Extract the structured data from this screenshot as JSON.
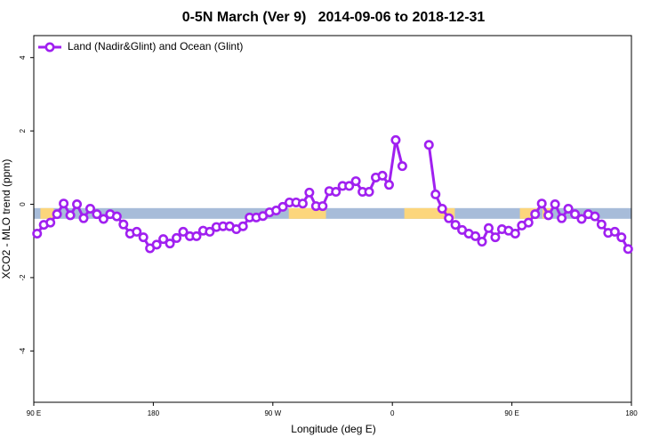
{
  "chart_data": {
    "type": "line",
    "title": "0-5N March (Ver 9)   2014-09-06 to 2018-12-31",
    "xlabel": "Longitude (deg E)",
    "ylabel": "XCO2 - MLO trend (ppm)",
    "xlim": [
      90,
      540
    ],
    "ylim": [
      -5.4,
      4.6
    ],
    "xticks": [
      {
        "value": 90,
        "label": "90 E"
      },
      180,
      {
        "value": 270,
        "label": "90 W"
      },
      {
        "value": 360,
        "label": "0"
      },
      {
        "value": 450,
        "label": "90 E"
      },
      {
        "value": 540,
        "label": "180"
      }
    ],
    "yticks": [
      -4,
      -2,
      0,
      2,
      4
    ],
    "legend_position": "top-left",
    "surface_level": -0.25,
    "surface_bands": [
      {
        "name": "ocean",
        "color": "#a7bcd9",
        "from": 90,
        "to": 540
      },
      {
        "name": "land",
        "color": "#fcd67c",
        "from": 95,
        "to": 105
      },
      {
        "name": "land",
        "color": "#fcd67c",
        "from": 282,
        "to": 310
      },
      {
        "name": "land",
        "color": "#fcd67c",
        "from": 369,
        "to": 407
      },
      {
        "name": "land",
        "color": "#fcd67c",
        "from": 456,
        "to": 470
      },
      {
        "name": "land",
        "color": "#fcd67c",
        "from": 473,
        "to": 480
      }
    ],
    "x": [
      92.5,
      97.5,
      102.5,
      107.5,
      112.5,
      117.5,
      122.5,
      127.5,
      132.5,
      137.5,
      142.5,
      147.5,
      152.5,
      157.5,
      162.5,
      167.5,
      172.5,
      177.5,
      182.5,
      187.5,
      192.5,
      197.5,
      202.5,
      207.5,
      212.5,
      217.5,
      222.5,
      227.5,
      232.5,
      237.5,
      242.5,
      247.5,
      252.5,
      257.5,
      262.5,
      267.5,
      272.5,
      277.5,
      282.5,
      287.5,
      292.5,
      297.5,
      302.5,
      307.5,
      312.5,
      317.5,
      322.5,
      327.5,
      332.5,
      337.5,
      342.5,
      347.5,
      352.5,
      357.5,
      362.5,
      367.5,
      372.5,
      377.5,
      382.5,
      387.5,
      392.5,
      397.5,
      402.5,
      407.5,
      412.5,
      417.5,
      422.5,
      427.5,
      432.5,
      437.5,
      442.5,
      447.5,
      452.5,
      457.5,
      462.5,
      467.5,
      472.5,
      477.5,
      482.5,
      487.5,
      492.5,
      497.5,
      502.5,
      507.5,
      512.5,
      517.5,
      522.5,
      527.5,
      532.5,
      537.5
    ],
    "series": [
      {
        "name": "Land (Nadir&Glint) and Ocean (Glint)",
        "color": "#a020f0",
        "values": [
          -0.8,
          -0.56,
          -0.5,
          -0.27,
          0.02,
          -0.3,
          0,
          -0.38,
          -0.12,
          -0.27,
          -0.4,
          -0.27,
          -0.33,
          -0.55,
          -0.8,
          -0.75,
          -0.9,
          -1.2,
          -1.1,
          -0.95,
          -1.07,
          -0.92,
          -0.75,
          -0.87,
          -0.87,
          -0.72,
          -0.75,
          -0.62,
          -0.6,
          -0.6,
          -0.68,
          -0.6,
          -0.36,
          -0.36,
          -0.32,
          -0.22,
          -0.17,
          -0.07,
          0.05,
          0.05,
          0.02,
          0.32,
          -0.05,
          -0.05,
          0.36,
          0.34,
          0.5,
          0.5,
          0.63,
          0.34,
          0.34,
          0.73,
          0.78,
          0.53,
          1.75,
          1.04,
          null,
          null,
          null,
          1.62,
          0.27,
          -0.12,
          -0.38,
          -0.56,
          -0.7,
          -0.8,
          -0.87,
          -1.02,
          -0.65,
          -0.9,
          -0.68,
          -0.72,
          -0.8,
          -0.58,
          -0.5,
          -0.27,
          0.02,
          -0.3,
          0,
          -0.38,
          -0.12,
          -0.27,
          -0.4,
          -0.27,
          -0.33,
          -0.55,
          -0.78,
          -0.75,
          -0.9,
          -1.22
        ]
      }
    ]
  }
}
